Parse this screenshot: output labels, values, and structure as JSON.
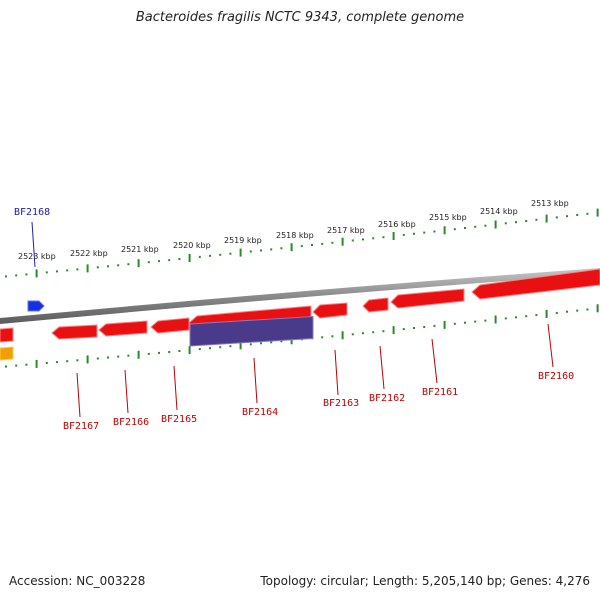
{
  "title": "Bacteroides fragilis NCTC 9343, complete genome",
  "footer": {
    "accession": "Accession: NC_003228",
    "summary": "Topology: circular; Length: 5,205,140 bp; Genes: 4,276"
  },
  "colors": {
    "backbone": "#8a8a8a",
    "tick": "#2a8a2a",
    "gene_red": "#e81010",
    "gene_blue": "#1530e0",
    "gene_purple": "#4a3a8a",
    "gene_orange": "#f0a000",
    "label_red": "#c00000",
    "label_blue": "#2020b0"
  },
  "kbp_labels": [
    "2513 kbp",
    "2514 kbp",
    "2515 kbp",
    "2516 kbp",
    "2517 kbp",
    "2518 kbp",
    "2519 kbp",
    "2520 kbp",
    "2521 kbp",
    "2522 kbp",
    "2523 kbp"
  ],
  "genes": [
    {
      "name": "BF2160",
      "track": "lower",
      "strand": "rev",
      "color": "red"
    },
    {
      "name": "BF2161",
      "track": "lower",
      "strand": "rev",
      "color": "red"
    },
    {
      "name": "BF2162",
      "track": "lower",
      "strand": "rev",
      "color": "red"
    },
    {
      "name": "BF2163",
      "track": "lower",
      "strand": "rev",
      "color": "red"
    },
    {
      "name": "BF2164",
      "track": "lower",
      "strand": "rev",
      "color": "red"
    },
    {
      "name": "",
      "track": "lower2",
      "strand": "none",
      "color": "purple"
    },
    {
      "name": "BF2165",
      "track": "lower",
      "strand": "rev",
      "color": "red"
    },
    {
      "name": "BF2166",
      "track": "lower",
      "strand": "rev",
      "color": "red"
    },
    {
      "name": "BF2167",
      "track": "lower",
      "strand": "rev",
      "color": "red"
    },
    {
      "name": "",
      "track": "lower",
      "strand": "rev",
      "color": "red"
    },
    {
      "name": "",
      "track": "lower2",
      "strand": "rev",
      "color": "orange"
    },
    {
      "name": "BF2168",
      "track": "upper",
      "strand": "fwd",
      "color": "blue"
    }
  ]
}
